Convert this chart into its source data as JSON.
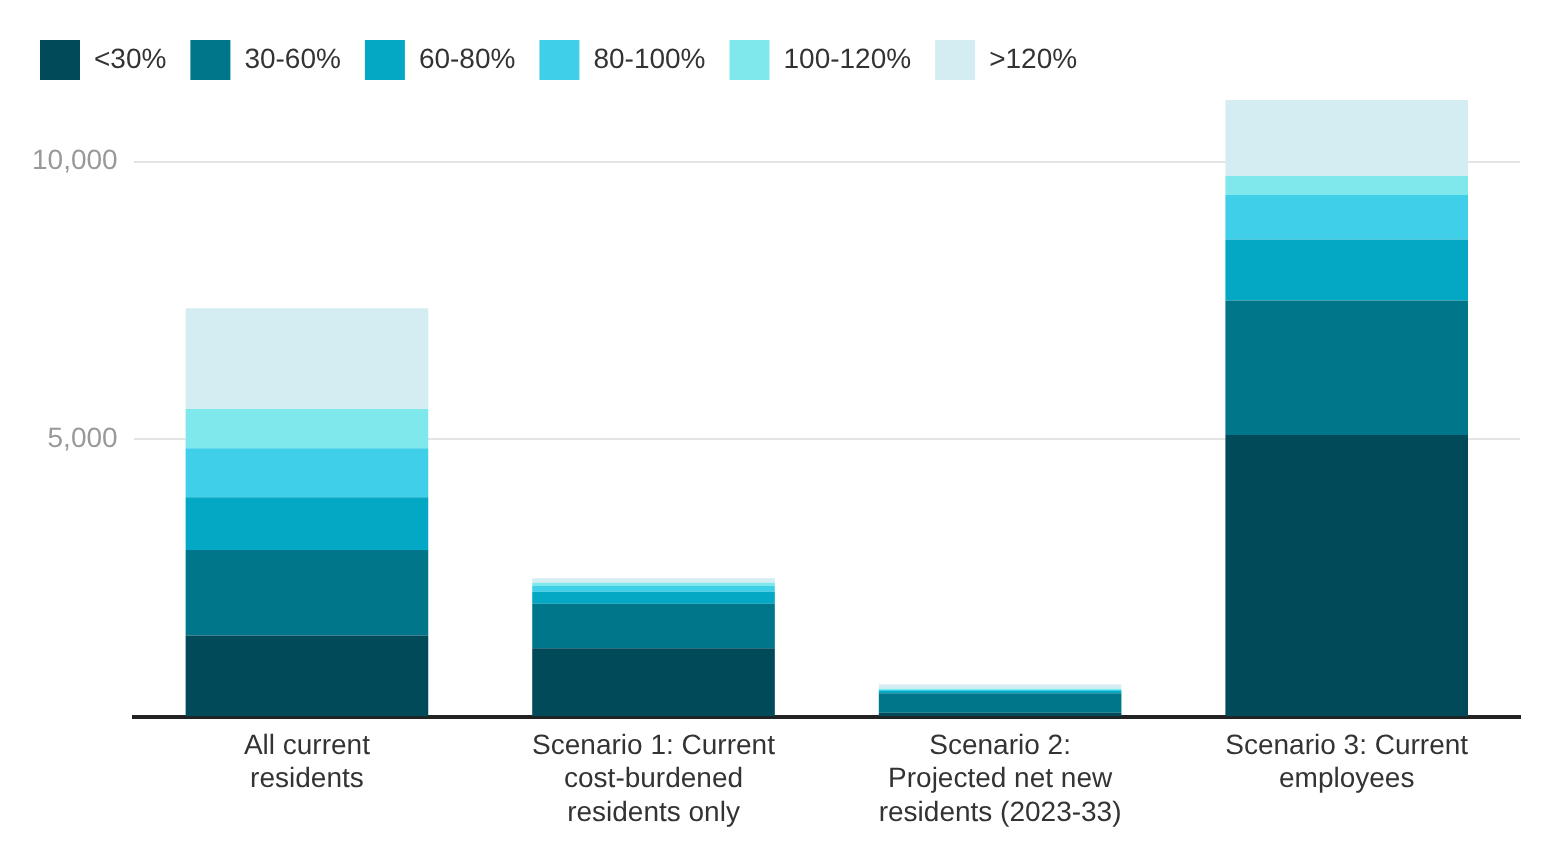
{
  "chart_data": {
    "type": "bar",
    "stacked": true,
    "categories": [
      "All current residents",
      "Scenario 1: Current cost-burdened residents only",
      "Scenario 2: Projected net new residents (2023-33)",
      "Scenario 3: Current employees"
    ],
    "series": [
      {
        "name": "<30%",
        "color": "#004a59",
        "values": [
          1470,
          1240,
          80,
          5080
        ]
      },
      {
        "name": "30-60%",
        "color": "#00768a",
        "values": [
          1540,
          800,
          350,
          2420
        ]
      },
      {
        "name": "60-80%",
        "color": "#05a8c4",
        "values": [
          950,
          220,
          40,
          1100
        ]
      },
      {
        "name": "80-100%",
        "color": "#40cfe8",
        "values": [
          880,
          100,
          20,
          800
        ]
      },
      {
        "name": "100-120%",
        "color": "#7ee8ec",
        "values": [
          710,
          60,
          20,
          340
        ]
      },
      {
        "name": ">120%",
        "color": "#d4edf2",
        "values": [
          1810,
          80,
          80,
          1370
        ]
      }
    ],
    "ylim": [
      0,
      11110
    ],
    "yticks": [
      {
        "value": 0,
        "label": null
      },
      {
        "value": 5000,
        "label": "5,000"
      },
      {
        "value": 10000,
        "label": "10,000"
      }
    ],
    "grid": "y",
    "legend": "top left"
  }
}
